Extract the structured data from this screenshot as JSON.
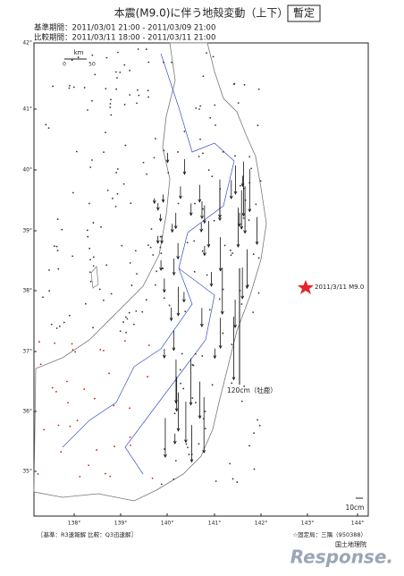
{
  "header": {
    "title": "本震(M9.0)に伴う地殻変動（上下）",
    "badge": "暫定",
    "reference_period": "基準期間：2011/03/01 21:00 - 2011/03/09 21:00",
    "comparison_period": "比較期間：2011/03/11 18:00 - 2011/03/11 21:00"
  },
  "map": {
    "lat_labels": [
      "42°",
      "41°",
      "40°",
      "39°",
      "38°",
      "37°",
      "36°",
      "35°"
    ],
    "lon_labels": [
      "138°",
      "139°",
      "140°",
      "141°",
      "142°",
      "143°",
      "144°"
    ],
    "scale_bar": {
      "unit": "km",
      "start": "0",
      "end": "50"
    },
    "epicenter_label": "2011/3/11 M9.0",
    "max_label": "120cm（牡鹿）",
    "vector_scale": "10cm"
  },
  "footer": {
    "note": "［基準：R3速報解 比較：Q3迅速解］",
    "fixed_station": "☆固定局：三隅（950388）",
    "agency": "国土地理院",
    "watermark": "Response."
  }
}
